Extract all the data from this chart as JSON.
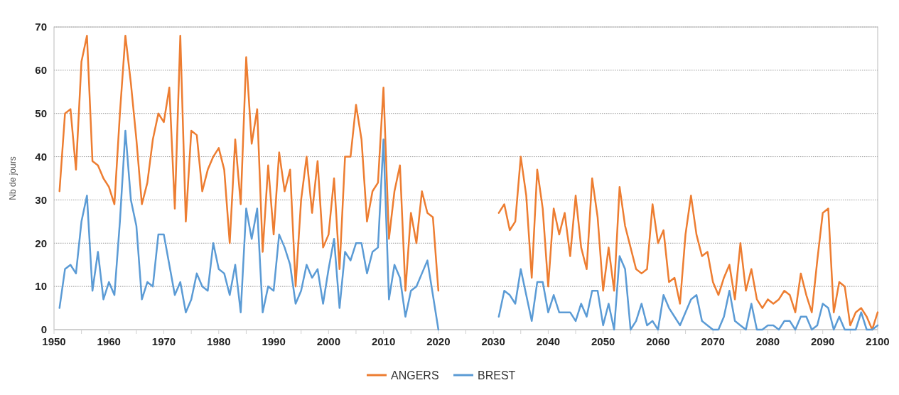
{
  "chart_data": {
    "type": "line",
    "ylabel": "Nb de jours",
    "x": [
      1951,
      1952,
      1953,
      1954,
      1955,
      1956,
      1957,
      1958,
      1959,
      1960,
      1961,
      1962,
      1963,
      1964,
      1965,
      1966,
      1967,
      1968,
      1969,
      1970,
      1971,
      1972,
      1973,
      1974,
      1975,
      1976,
      1977,
      1978,
      1979,
      1980,
      1981,
      1982,
      1983,
      1984,
      1985,
      1986,
      1987,
      1988,
      1989,
      1990,
      1991,
      1992,
      1993,
      1994,
      1995,
      1996,
      1997,
      1998,
      1999,
      2000,
      2001,
      2002,
      2003,
      2004,
      2005,
      2006,
      2007,
      2008,
      2009,
      2010,
      2011,
      2012,
      2013,
      2014,
      2015,
      2016,
      2017,
      2018,
      2019,
      2020,
      2021,
      2022,
      2023,
      2024,
      2025,
      2026,
      2027,
      2028,
      2029,
      2030,
      2031,
      2032,
      2033,
      2034,
      2035,
      2036,
      2037,
      2038,
      2039,
      2040,
      2041,
      2042,
      2043,
      2044,
      2045,
      2046,
      2047,
      2048,
      2049,
      2050,
      2051,
      2052,
      2053,
      2054,
      2055,
      2056,
      2057,
      2058,
      2059,
      2060,
      2061,
      2062,
      2063,
      2064,
      2065,
      2066,
      2067,
      2068,
      2069,
      2070,
      2071,
      2072,
      2073,
      2074,
      2075,
      2076,
      2077,
      2078,
      2079,
      2080,
      2081,
      2082,
      2083,
      2084,
      2085,
      2086,
      2087,
      2088,
      2089,
      2090,
      2091,
      2092,
      2093,
      2094,
      2095,
      2096,
      2097,
      2098,
      2099,
      2100
    ],
    "series": [
      {
        "name": "ANGERS",
        "color": "#ed7d31",
        "values": [
          32,
          50,
          51,
          37,
          62,
          68,
          39,
          38,
          35,
          33,
          29,
          50,
          68,
          57,
          44,
          29,
          34,
          44,
          50,
          48,
          56,
          28,
          68,
          25,
          46,
          45,
          32,
          37,
          40,
          42,
          37,
          20,
          44,
          29,
          63,
          43,
          51,
          18,
          38,
          22,
          41,
          32,
          37,
          10,
          30,
          40,
          27,
          39,
          19,
          22,
          35,
          14,
          40,
          40,
          52,
          44,
          25,
          32,
          34,
          56,
          21,
          32,
          38,
          9,
          27,
          20,
          32,
          27,
          26,
          9,
          null,
          null,
          null,
          null,
          null,
          null,
          null,
          null,
          null,
          null,
          27,
          29,
          23,
          25,
          40,
          31,
          12,
          37,
          28,
          10,
          28,
          22,
          27,
          17,
          31,
          19,
          14,
          35,
          26,
          9,
          19,
          9,
          33,
          24,
          19,
          14,
          13,
          14,
          29,
          20,
          23,
          11,
          12,
          6,
          22,
          31,
          22,
          17,
          18,
          11,
          8,
          12,
          15,
          7,
          20,
          9,
          14,
          7,
          5,
          7,
          6,
          7,
          9,
          8,
          4,
          13,
          8,
          4,
          16,
          27,
          28,
          4,
          11,
          10,
          1,
          4,
          5,
          3,
          0,
          4
        ]
      },
      {
        "name": "BREST",
        "color": "#5b9bd5",
        "values": [
          5,
          14,
          15,
          13,
          25,
          31,
          9,
          18,
          7,
          11,
          8,
          25,
          46,
          30,
          24,
          7,
          11,
          10,
          22,
          22,
          15,
          8,
          11,
          4,
          7,
          13,
          10,
          9,
          20,
          14,
          13,
          8,
          15,
          4,
          28,
          21,
          28,
          4,
          10,
          9,
          22,
          19,
          15,
          6,
          9,
          15,
          12,
          14,
          6,
          14,
          21,
          5,
          18,
          16,
          20,
          20,
          13,
          18,
          19,
          44,
          7,
          15,
          12,
          3,
          9,
          10,
          13,
          16,
          8,
          0,
          null,
          null,
          null,
          null,
          null,
          null,
          null,
          null,
          null,
          null,
          3,
          9,
          8,
          6,
          14,
          8,
          2,
          11,
          11,
          4,
          8,
          4,
          4,
          4,
          2,
          6,
          3,
          9,
          9,
          1,
          6,
          0,
          17,
          14,
          0,
          2,
          6,
          1,
          2,
          0,
          8,
          5,
          3,
          1,
          4,
          7,
          8,
          2,
          1,
          0,
          0,
          3,
          9,
          2,
          1,
          0,
          6,
          0,
          0,
          1,
          1,
          0,
          2,
          2,
          0,
          3,
          3,
          0,
          1,
          6,
          5,
          0,
          3,
          0,
          0,
          0,
          4,
          0,
          0,
          1
        ]
      }
    ],
    "xlim": [
      1950,
      2100
    ],
    "xticks": [
      1950,
      {
        "value": 1955,
        "label": null
      },
      1960,
      {
        "value": 1965,
        "label": null
      },
      1970,
      {
        "value": 1975,
        "label": null
      },
      1980,
      {
        "value": 1985,
        "label": null
      },
      1990,
      {
        "value": 1995,
        "label": null
      },
      2000,
      {
        "value": 2005,
        "label": null
      },
      2010,
      {
        "value": 2015,
        "label": null
      },
      2020,
      {
        "value": 2025,
        "label": null
      },
      2030,
      {
        "value": 2035,
        "label": null
      },
      2040,
      {
        "value": 2045,
        "label": null
      },
      2050,
      {
        "value": 2055,
        "label": null
      },
      2060,
      {
        "value": 2065,
        "label": null
      },
      2070,
      {
        "value": 2075,
        "label": null
      },
      2080,
      {
        "value": 2085,
        "label": null
      },
      2090,
      {
        "value": 2095,
        "label": null
      },
      2100
    ],
    "ylim": [
      0,
      70
    ],
    "yticks": [
      0,
      10,
      20,
      30,
      40,
      50,
      60,
      70
    ],
    "grid": "y",
    "legend": "bottom",
    "marker": "none",
    "line_style": "solid"
  }
}
